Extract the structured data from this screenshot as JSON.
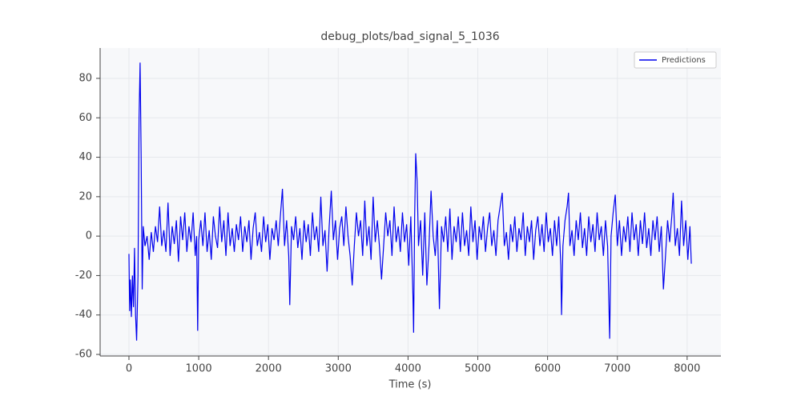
{
  "chart_data": {
    "type": "line",
    "title": "debug_plots/bad_signal_5_1036",
    "xlabel": "Time (s)",
    "xlim": [
      -413,
      8484
    ],
    "ylim": [
      -60.8,
      95.4
    ],
    "xticks": [
      0,
      1000,
      2000,
      3000,
      4000,
      5000,
      6000,
      7000,
      8000
    ],
    "yticks": [
      -60,
      -40,
      -20,
      0,
      20,
      40,
      60,
      80
    ],
    "grid": true,
    "legend": "upper right",
    "x": [
      0,
      10,
      20,
      35,
      50,
      65,
      80,
      95,
      110,
      130,
      145,
      160,
      175,
      190,
      205,
      230,
      260,
      290,
      320,
      350,
      380,
      410,
      440,
      470,
      500,
      530,
      560,
      590,
      620,
      650,
      680,
      710,
      740,
      770,
      800,
      830,
      860,
      890,
      920,
      950,
      970,
      985,
      1000,
      1030,
      1060,
      1090,
      1120,
      1150,
      1180,
      1210,
      1240,
      1270,
      1300,
      1330,
      1360,
      1390,
      1420,
      1450,
      1480,
      1510,
      1540,
      1570,
      1600,
      1630,
      1660,
      1690,
      1720,
      1750,
      1780,
      1810,
      1840,
      1870,
      1900,
      1930,
      1960,
      1990,
      2020,
      2050,
      2080,
      2110,
      2140,
      2170,
      2200,
      2230,
      2260,
      2290,
      2305,
      2330,
      2360,
      2390,
      2420,
      2450,
      2480,
      2510,
      2540,
      2570,
      2600,
      2630,
      2660,
      2690,
      2720,
      2750,
      2780,
      2810,
      2840,
      2870,
      2900,
      2930,
      2960,
      2990,
      3020,
      3050,
      3080,
      3110,
      3140,
      3170,
      3200,
      3230,
      3260,
      3290,
      3320,
      3350,
      3380,
      3410,
      3440,
      3470,
      3500,
      3530,
      3560,
      3590,
      3620,
      3650,
      3680,
      3710,
      3740,
      3770,
      3800,
      3830,
      3860,
      3890,
      3920,
      3950,
      3980,
      4010,
      4040,
      4070,
      4080,
      4095,
      4110,
      4130,
      4150,
      4180,
      4210,
      4240,
      4270,
      4300,
      4330,
      4360,
      4390,
      4420,
      4450,
      4480,
      4510,
      4540,
      4570,
      4600,
      4630,
      4660,
      4690,
      4720,
      4750,
      4780,
      4810,
      4840,
      4870,
      4900,
      4930,
      4960,
      4990,
      5020,
      5050,
      5080,
      5110,
      5140,
      5170,
      5200,
      5230,
      5260,
      5290,
      5320,
      5350,
      5380,
      5410,
      5440,
      5470,
      5500,
      5530,
      5560,
      5590,
      5620,
      5650,
      5680,
      5710,
      5740,
      5770,
      5800,
      5830,
      5860,
      5890,
      5920,
      5950,
      5980,
      6010,
      6040,
      6070,
      6100,
      6130,
      6160,
      6190,
      6200,
      6220,
      6250,
      6280,
      6300,
      6320,
      6350,
      6380,
      6410,
      6440,
      6470,
      6500,
      6530,
      6560,
      6590,
      6620,
      6650,
      6680,
      6710,
      6740,
      6770,
      6800,
      6830,
      6860,
      6890,
      6910,
      6940,
      6970,
      7000,
      7030,
      7060,
      7090,
      7120,
      7150,
      7180,
      7210,
      7240,
      7270,
      7300,
      7330,
      7360,
      7390,
      7420,
      7450,
      7480,
      7510,
      7540,
      7570,
      7600,
      7630,
      7660,
      7690,
      7720,
      7750,
      7780,
      7800,
      7830,
      7860,
      7890,
      7920,
      7950,
      7980,
      8010,
      8040,
      8060
    ],
    "series": [
      {
        "name": "Predictions",
        "color": "#0000ee",
        "values": [
          -9,
          -38,
          -22,
          -41,
          -20,
          -36,
          -6,
          -40,
          -53,
          -20,
          60,
          88,
          40,
          -27,
          5,
          -5,
          0,
          -12,
          2,
          -8,
          5,
          -3,
          15,
          -5,
          3,
          -8,
          17,
          -10,
          5,
          -4,
          8,
          -13,
          10,
          -2,
          12,
          -8,
          5,
          -3,
          12,
          -10,
          0,
          -48,
          -2,
          8,
          -5,
          12,
          -8,
          3,
          -12,
          10,
          0,
          -6,
          15,
          -3,
          8,
          -10,
          12,
          -5,
          4,
          -8,
          6,
          -2,
          10,
          -8,
          5,
          -3,
          8,
          -12,
          4,
          12,
          -5,
          2,
          -8,
          10,
          -3,
          6,
          -12,
          4,
          -2,
          8,
          -5,
          10,
          24,
          -5,
          8,
          -10,
          -35,
          5,
          -2,
          10,
          -6,
          4,
          -12,
          8,
          -3,
          6,
          -10,
          12,
          -2,
          5,
          -8,
          20,
          -5,
          3,
          -18,
          5,
          23,
          -2,
          8,
          -12,
          4,
          10,
          -5,
          15,
          0,
          -10,
          -25,
          -5,
          12,
          0,
          8,
          -10,
          18,
          -5,
          5,
          -12,
          20,
          -3,
          8,
          -5,
          -22,
          -5,
          12,
          0,
          8,
          -10,
          15,
          -3,
          5,
          -8,
          12,
          -3,
          6,
          -15,
          10,
          -30,
          -49,
          10,
          42,
          28,
          -5,
          8,
          -20,
          12,
          -25,
          -5,
          23,
          0,
          -10,
          8,
          -37,
          5,
          -3,
          10,
          -8,
          14,
          -12,
          5,
          -3,
          10,
          -8,
          12,
          -5,
          3,
          -10,
          15,
          -3,
          8,
          -12,
          5,
          -2,
          10,
          -8,
          4,
          12,
          -5,
          3,
          -10,
          8,
          15,
          22,
          -5,
          2,
          -12,
          6,
          -3,
          10,
          -8,
          4,
          -2,
          12,
          -10,
          5,
          -3,
          8,
          -12,
          3,
          10,
          -5,
          6,
          -8,
          12,
          -3,
          4,
          -10,
          8,
          -5,
          10,
          -15,
          -40,
          -5,
          8,
          15,
          22,
          -5,
          3,
          -10,
          8,
          -2,
          12,
          -6,
          4,
          -10,
          10,
          -3,
          6,
          -8,
          12,
          -2,
          5,
          -10,
          8,
          -5,
          -52,
          0,
          12,
          21,
          -5,
          8,
          -10,
          5,
          -3,
          10,
          -8,
          12,
          -2,
          6,
          -10,
          8,
          -4,
          12,
          -6,
          4,
          -10,
          8,
          -2,
          10,
          -8,
          5,
          -27,
          -10,
          8,
          -3,
          10,
          22,
          -5,
          4,
          -10,
          18,
          -5,
          8,
          -12,
          5,
          -14
        ]
      }
    ]
  }
}
